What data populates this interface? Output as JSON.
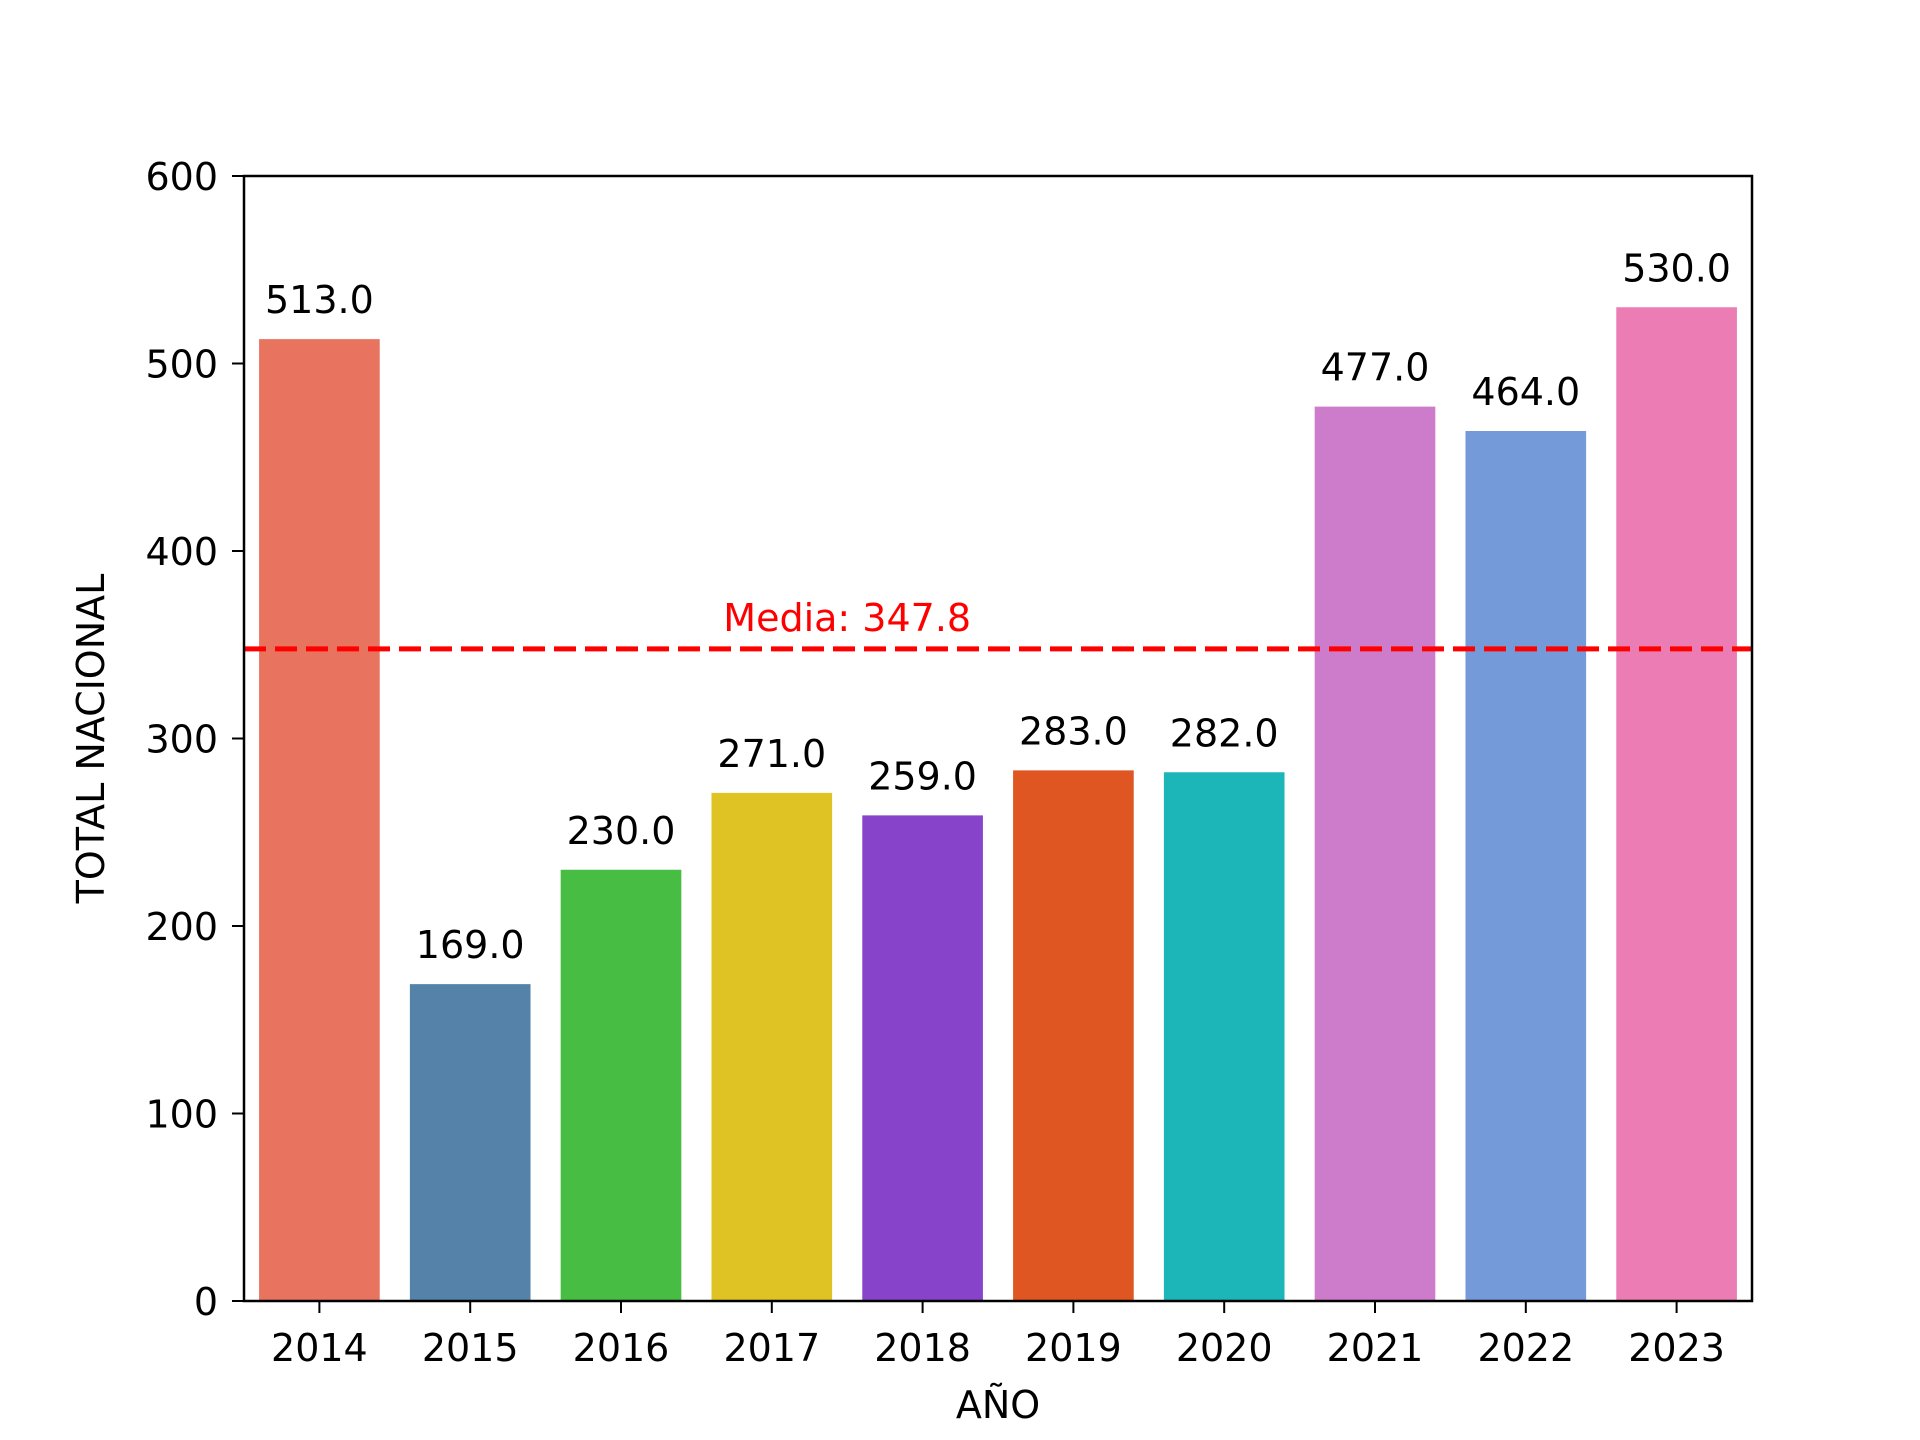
{
  "chart_data": {
    "type": "bar",
    "categories": [
      "2014",
      "2015",
      "2016",
      "2017",
      "2018",
      "2019",
      "2020",
      "2021",
      "2022",
      "2023"
    ],
    "values": [
      513.0,
      169.0,
      230.0,
      271.0,
      259.0,
      283.0,
      282.0,
      477.0,
      464.0,
      530.0
    ],
    "value_labels": [
      "513.0",
      "169.0",
      "230.0",
      "271.0",
      "259.0",
      "283.0",
      "282.0",
      "477.0",
      "464.0",
      "530.0"
    ],
    "colors": [
      "#e8735f",
      "#5582a8",
      "#47bd43",
      "#dfc224",
      "#8843cb",
      "#df5622",
      "#1cb6b8",
      "#cd7ccb",
      "#759ad9",
      "#eb7cb4"
    ],
    "xlabel": "AÑO",
    "ylabel": "TOTAL NACIONAL",
    "ylim": [
      0,
      600
    ],
    "yticks": [
      0,
      100,
      200,
      300,
      400,
      500,
      600
    ],
    "grid": false,
    "mean": {
      "value": 347.8,
      "label": "Media: 347.8",
      "color": "#ff0000",
      "style": "dashed"
    }
  }
}
